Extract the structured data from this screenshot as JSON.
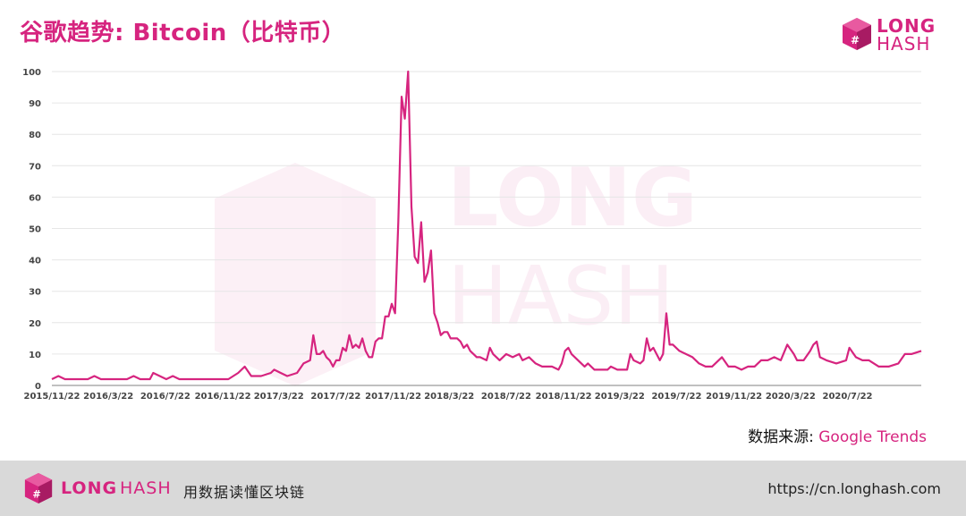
{
  "header": {
    "title": "谷歌趋势: Bitcoin（比特币）",
    "logo_long": "LONG",
    "logo_hash": "HASH"
  },
  "source": {
    "label": "数据来源: ",
    "value": "Google Trends"
  },
  "footer": {
    "logo_long": "LONG",
    "logo_hash": "HASH",
    "slogan": "用数据读懂区块链",
    "url": "https://cn.longhash.com"
  },
  "colors": {
    "brand": "#d6247f",
    "line": "#d6247f",
    "grid": "#e6e6e6",
    "footer_bg": "#d9d9d9"
  },
  "chart_data": {
    "type": "line",
    "title": "谷歌趋势: Bitcoin（比特币）",
    "xlabel": "",
    "ylabel": "",
    "ylim": [
      0,
      100
    ],
    "yticks": [
      0,
      10,
      20,
      30,
      40,
      50,
      60,
      70,
      80,
      90,
      100
    ],
    "grid": true,
    "xtick_labels": [
      "2015/11/22",
      "2016/3/22",
      "2016/7/22",
      "2016/11/22",
      "2017/3/22",
      "2017/7/22",
      "2017/11/22",
      "2018/3/22",
      "2018/7/22",
      "2018/11/22",
      "2019/3/22",
      "2019/7/22",
      "2019/11/22",
      "2020/3/22",
      "2020/7/22"
    ],
    "x_range": [
      "2015/11/22",
      "2020/12/27"
    ],
    "series": [
      {
        "name": "",
        "points": [
          [
            "2015-11-22",
            2
          ],
          [
            "2015-12-06",
            3
          ],
          [
            "2015-12-20",
            2
          ],
          [
            "2016-01-10",
            2
          ],
          [
            "2016-02-07",
            2
          ],
          [
            "2016-02-21",
            3
          ],
          [
            "2016-03-06",
            2
          ],
          [
            "2016-04-03",
            2
          ],
          [
            "2016-05-01",
            2
          ],
          [
            "2016-05-15",
            3
          ],
          [
            "2016-05-29",
            2
          ],
          [
            "2016-06-19",
            2
          ],
          [
            "2016-06-26",
            4
          ],
          [
            "2016-07-10",
            3
          ],
          [
            "2016-07-24",
            2
          ],
          [
            "2016-08-07",
            3
          ],
          [
            "2016-08-21",
            2
          ],
          [
            "2016-09-18",
            2
          ],
          [
            "2016-10-16",
            2
          ],
          [
            "2016-11-13",
            2
          ],
          [
            "2016-12-04",
            2
          ],
          [
            "2016-12-25",
            4
          ],
          [
            "2017-01-08",
            6
          ],
          [
            "2017-01-22",
            3
          ],
          [
            "2017-02-12",
            3
          ],
          [
            "2017-03-05",
            4
          ],
          [
            "2017-03-12",
            5
          ],
          [
            "2017-03-26",
            4
          ],
          [
            "2017-04-09",
            3
          ],
          [
            "2017-04-30",
            4
          ],
          [
            "2017-05-14",
            7
          ],
          [
            "2017-05-28",
            8
          ],
          [
            "2017-06-04",
            16
          ],
          [
            "2017-06-11",
            10
          ],
          [
            "2017-06-18",
            10
          ],
          [
            "2017-06-25",
            11
          ],
          [
            "2017-07-02",
            9
          ],
          [
            "2017-07-09",
            8
          ],
          [
            "2017-07-16",
            6
          ],
          [
            "2017-07-23",
            8
          ],
          [
            "2017-07-30",
            8
          ],
          [
            "2017-08-06",
            12
          ],
          [
            "2017-08-13",
            11
          ],
          [
            "2017-08-20",
            16
          ],
          [
            "2017-08-27",
            12
          ],
          [
            "2017-09-03",
            13
          ],
          [
            "2017-09-10",
            12
          ],
          [
            "2017-09-17",
            15
          ],
          [
            "2017-09-24",
            11
          ],
          [
            "2017-10-01",
            9
          ],
          [
            "2017-10-08",
            9
          ],
          [
            "2017-10-15",
            14
          ],
          [
            "2017-10-22",
            15
          ],
          [
            "2017-10-29",
            15
          ],
          [
            "2017-11-05",
            22
          ],
          [
            "2017-11-12",
            22
          ],
          [
            "2017-11-19",
            26
          ],
          [
            "2017-11-26",
            23
          ],
          [
            "2017-12-03",
            52
          ],
          [
            "2017-12-10",
            92
          ],
          [
            "2017-12-17",
            85
          ],
          [
            "2017-12-24",
            100
          ],
          [
            "2017-12-31",
            57
          ],
          [
            "2018-01-07",
            41
          ],
          [
            "2018-01-14",
            39
          ],
          [
            "2018-01-21",
            52
          ],
          [
            "2018-01-28",
            33
          ],
          [
            "2018-02-04",
            36
          ],
          [
            "2018-02-11",
            43
          ],
          [
            "2018-02-18",
            23
          ],
          [
            "2018-02-25",
            20
          ],
          [
            "2018-03-04",
            16
          ],
          [
            "2018-03-11",
            17
          ],
          [
            "2018-03-18",
            17
          ],
          [
            "2018-03-25",
            15
          ],
          [
            "2018-04-08",
            15
          ],
          [
            "2018-04-15",
            14
          ],
          [
            "2018-04-22",
            12
          ],
          [
            "2018-04-29",
            13
          ],
          [
            "2018-05-06",
            11
          ],
          [
            "2018-05-13",
            10
          ],
          [
            "2018-05-20",
            9
          ],
          [
            "2018-05-27",
            9
          ],
          [
            "2018-06-10",
            8
          ],
          [
            "2018-06-17",
            12
          ],
          [
            "2018-06-24",
            10
          ],
          [
            "2018-07-01",
            9
          ],
          [
            "2018-07-08",
            8
          ],
          [
            "2018-07-22",
            10
          ],
          [
            "2018-08-05",
            9
          ],
          [
            "2018-08-19",
            10
          ],
          [
            "2018-08-26",
            8
          ],
          [
            "2018-09-09",
            9
          ],
          [
            "2018-09-23",
            7
          ],
          [
            "2018-10-07",
            6
          ],
          [
            "2018-10-28",
            6
          ],
          [
            "2018-11-11",
            5
          ],
          [
            "2018-11-18",
            7
          ],
          [
            "2018-11-25",
            11
          ],
          [
            "2018-12-02",
            12
          ],
          [
            "2018-12-09",
            10
          ],
          [
            "2018-12-23",
            8
          ],
          [
            "2019-01-06",
            6
          ],
          [
            "2019-01-13",
            7
          ],
          [
            "2019-01-27",
            5
          ],
          [
            "2019-02-10",
            5
          ],
          [
            "2019-02-24",
            5
          ],
          [
            "2019-03-03",
            6
          ],
          [
            "2019-03-17",
            5
          ],
          [
            "2019-04-07",
            5
          ],
          [
            "2019-04-14",
            10
          ],
          [
            "2019-04-21",
            8
          ],
          [
            "2019-05-05",
            7
          ],
          [
            "2019-05-12",
            8
          ],
          [
            "2019-05-19",
            15
          ],
          [
            "2019-05-26",
            11
          ],
          [
            "2019-06-02",
            12
          ],
          [
            "2019-06-16",
            8
          ],
          [
            "2019-06-23",
            10
          ],
          [
            "2019-06-30",
            23
          ],
          [
            "2019-07-07",
            13
          ],
          [
            "2019-07-14",
            13
          ],
          [
            "2019-07-28",
            11
          ],
          [
            "2019-08-11",
            10
          ],
          [
            "2019-08-25",
            9
          ],
          [
            "2019-09-08",
            7
          ],
          [
            "2019-09-22",
            6
          ],
          [
            "2019-10-06",
            6
          ],
          [
            "2019-10-27",
            9
          ],
          [
            "2019-11-10",
            6
          ],
          [
            "2019-11-24",
            6
          ],
          [
            "2019-12-08",
            5
          ],
          [
            "2019-12-22",
            6
          ],
          [
            "2020-01-05",
            6
          ],
          [
            "2020-01-19",
            8
          ],
          [
            "2020-02-02",
            8
          ],
          [
            "2020-02-16",
            9
          ],
          [
            "2020-03-01",
            8
          ],
          [
            "2020-03-15",
            13
          ],
          [
            "2020-03-29",
            10
          ],
          [
            "2020-04-05",
            8
          ],
          [
            "2020-04-19",
            8
          ],
          [
            "2020-05-03",
            11
          ],
          [
            "2020-05-10",
            13
          ],
          [
            "2020-05-17",
            14
          ],
          [
            "2020-05-24",
            9
          ],
          [
            "2020-06-07",
            8
          ],
          [
            "2020-06-28",
            7
          ],
          [
            "2020-07-19",
            8
          ],
          [
            "2020-07-26",
            12
          ],
          [
            "2020-08-09",
            9
          ],
          [
            "2020-08-23",
            8
          ],
          [
            "2020-09-06",
            8
          ],
          [
            "2020-09-27",
            6
          ],
          [
            "2020-10-18",
            6
          ],
          [
            "2020-11-08",
            7
          ],
          [
            "2020-11-22",
            10
          ],
          [
            "2020-12-06",
            10
          ],
          [
            "2020-12-27",
            11
          ]
        ]
      }
    ]
  }
}
